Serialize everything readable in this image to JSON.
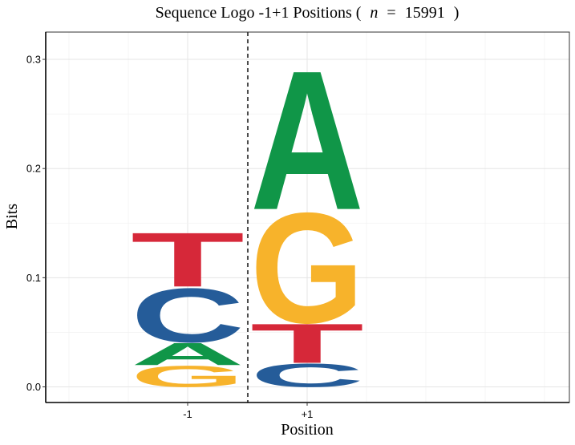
{
  "chart_data": {
    "type": "sequence_logo",
    "title": {
      "prefix": "Sequence Logo -1+1 Positions (",
      "n_symbol": "n",
      "equals": "=",
      "n_value": "15991",
      "suffix": ")"
    },
    "xlabel": "Position",
    "ylabel": "Bits",
    "ylim": [
      0,
      0.325
    ],
    "y_ticks": [
      "0.0",
      "0.1",
      "0.2",
      "0.3"
    ],
    "y_tick_values": [
      0.0,
      0.1,
      0.2,
      0.3
    ],
    "positions": [
      {
        "label": "-1",
        "stack": [
          {
            "letter": "G",
            "bottom": 0.0,
            "top": 0.02
          },
          {
            "letter": "A",
            "bottom": 0.02,
            "top": 0.041
          },
          {
            "letter": "C",
            "bottom": 0.041,
            "top": 0.092
          },
          {
            "letter": "T",
            "bottom": 0.092,
            "top": 0.143
          }
        ]
      },
      {
        "label": "+1",
        "stack": [
          {
            "letter": "C",
            "bottom": 0.0,
            "top": 0.022
          },
          {
            "letter": "T",
            "bottom": 0.022,
            "top": 0.059
          },
          {
            "letter": "G",
            "bottom": 0.059,
            "top": 0.163
          },
          {
            "letter": "A",
            "bottom": 0.163,
            "top": 0.294
          }
        ]
      }
    ],
    "colors": {
      "A": "#109648",
      "C": "#255C99",
      "G": "#F7B32B",
      "T": "#D62839"
    },
    "divider": "dashed vertical line between -1 and +1",
    "grid": true,
    "legend": "none"
  }
}
